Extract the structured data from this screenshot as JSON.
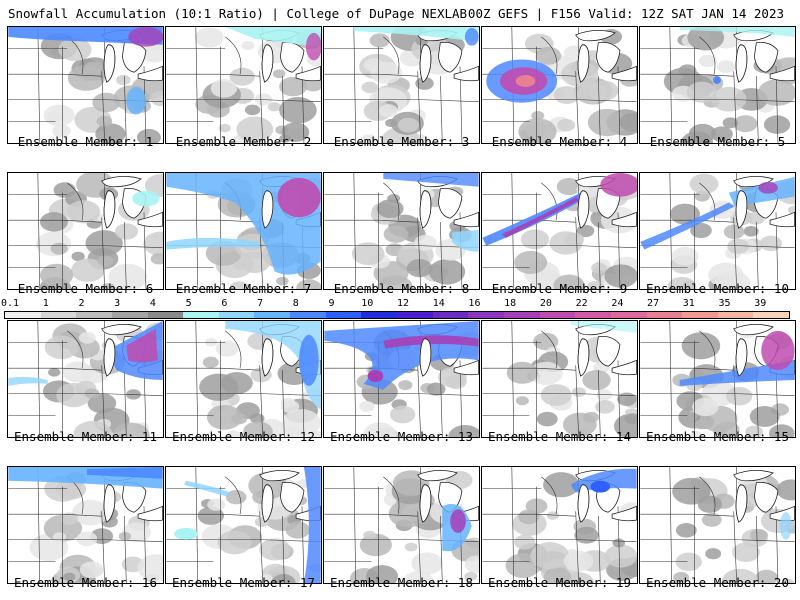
{
  "header": {
    "left_title": "Snowfall Accumulation (10:1 Ratio) | College of DuPage NEXLAB",
    "right_title": "00Z GEFS | F156 Valid: 12Z SAT JAN 14 2023"
  },
  "colorbar": {
    "labels": [
      "0.1",
      "1",
      "2",
      "3",
      "4",
      "5",
      "6",
      "7",
      "8",
      "9",
      "10",
      "12",
      "14",
      "16",
      "18",
      "20",
      "22",
      "24",
      "27",
      "31",
      "35",
      "39"
    ],
    "colors": [
      "#f0f0f0",
      "#d6d6d6",
      "#bdbdbd",
      "#a3a3a3",
      "#8a8a8a",
      "#a9f3f3",
      "#8ed6ff",
      "#66b3ff",
      "#4d88ff",
      "#2e5fff",
      "#1f2fe0",
      "#4b1fd1",
      "#6c2ac8",
      "#8c35c0",
      "#a640b8",
      "#c04cb0",
      "#d45aa6",
      "#e06a9c",
      "#e87f92",
      "#f09b8c",
      "#f5b69e",
      "#f9d2b8"
    ]
  },
  "members": [
    {
      "label": "Ensemble Member: 1"
    },
    {
      "label": "Ensemble Member: 2"
    },
    {
      "label": "Ensemble Member: 3"
    },
    {
      "label": "Ensemble Member: 4"
    },
    {
      "label": "Ensemble Member: 5"
    },
    {
      "label": "Ensemble Member: 6"
    },
    {
      "label": "Ensemble Member: 7"
    },
    {
      "label": "Ensemble Member: 8"
    },
    {
      "label": "Ensemble Member: 9"
    },
    {
      "label": "Ensemble Member: 10"
    },
    {
      "label": "Ensemble Member: 11"
    },
    {
      "label": "Ensemble Member: 12"
    },
    {
      "label": "Ensemble Member: 13"
    },
    {
      "label": "Ensemble Member: 14"
    },
    {
      "label": "Ensemble Member: 15"
    },
    {
      "label": "Ensemble Member: 16"
    },
    {
      "label": "Ensemble Member: 17"
    },
    {
      "label": "Ensemble Member: 18"
    },
    {
      "label": "Ensemble Member: 19"
    },
    {
      "label": "Ensemble Member: 20"
    }
  ]
}
